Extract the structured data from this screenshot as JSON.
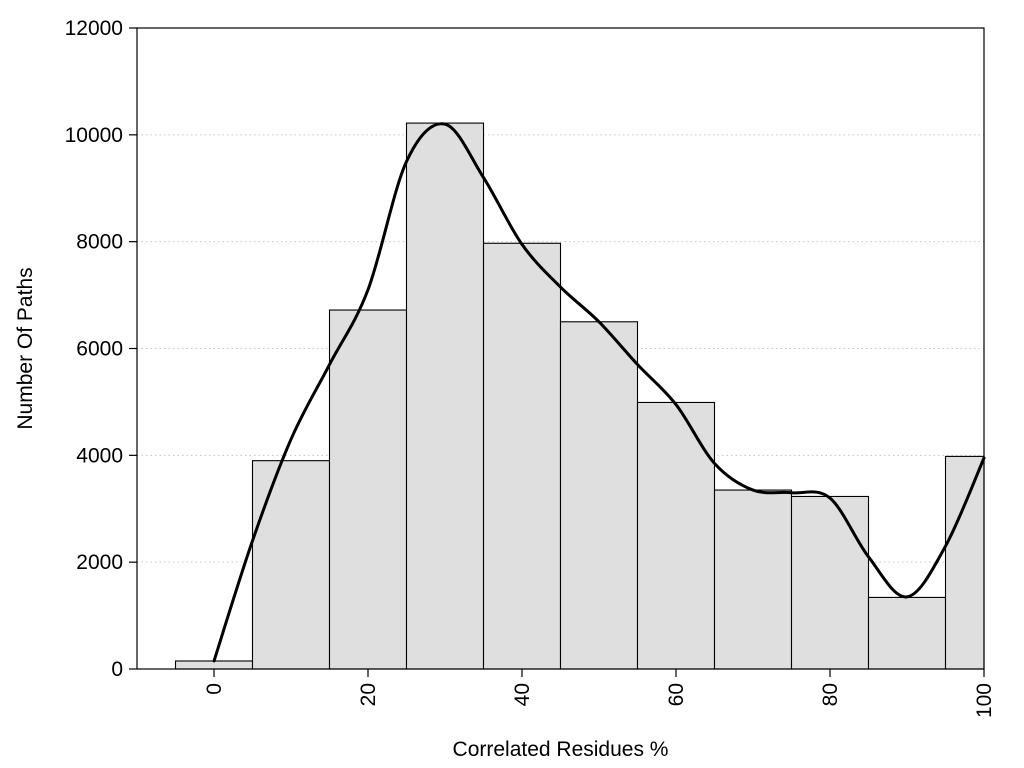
{
  "chart_data": {
    "type": "bar",
    "xlabel": "Correlated Residues %",
    "ylabel": "Number Of Paths",
    "bin_width": 10,
    "bins": [
      {
        "x": 0,
        "value": 150
      },
      {
        "x": 10,
        "value": 3900
      },
      {
        "x": 20,
        "value": 6720
      },
      {
        "x": 30,
        "value": 10220
      },
      {
        "x": 40,
        "value": 7970
      },
      {
        "x": 50,
        "value": 6500
      },
      {
        "x": 60,
        "value": 4990
      },
      {
        "x": 70,
        "value": 3350
      },
      {
        "x": 80,
        "value": 3230
      },
      {
        "x": 90,
        "value": 1340
      },
      {
        "x": 100,
        "value": 3980
      }
    ],
    "curve": {
      "x": [
        0,
        5,
        10,
        15,
        20,
        25,
        30,
        35,
        40,
        45,
        50,
        55,
        60,
        65,
        70,
        75,
        80,
        85,
        90,
        95,
        100
      ],
      "y": [
        150,
        2400,
        4300,
        5700,
        7100,
        9500,
        10200,
        9200,
        7950,
        7150,
        6500,
        5700,
        4950,
        3850,
        3350,
        3300,
        3200,
        2100,
        1350,
        2300,
        3950
      ]
    },
    "xlim": [
      -10,
      100
    ],
    "ylim": [
      0,
      12000
    ],
    "xticks": [
      "0",
      "20",
      "40",
      "60",
      "80",
      "100"
    ],
    "yticks": [
      "0",
      "2000",
      "4000",
      "6000",
      "8000",
      "10000",
      "12000"
    ],
    "grid": "horizontal dotted",
    "colors": {
      "bar_fill": "#dfdfdf",
      "bar_stroke": "#000000",
      "curve": "#000000",
      "grid": "#c8c8c8"
    }
  }
}
